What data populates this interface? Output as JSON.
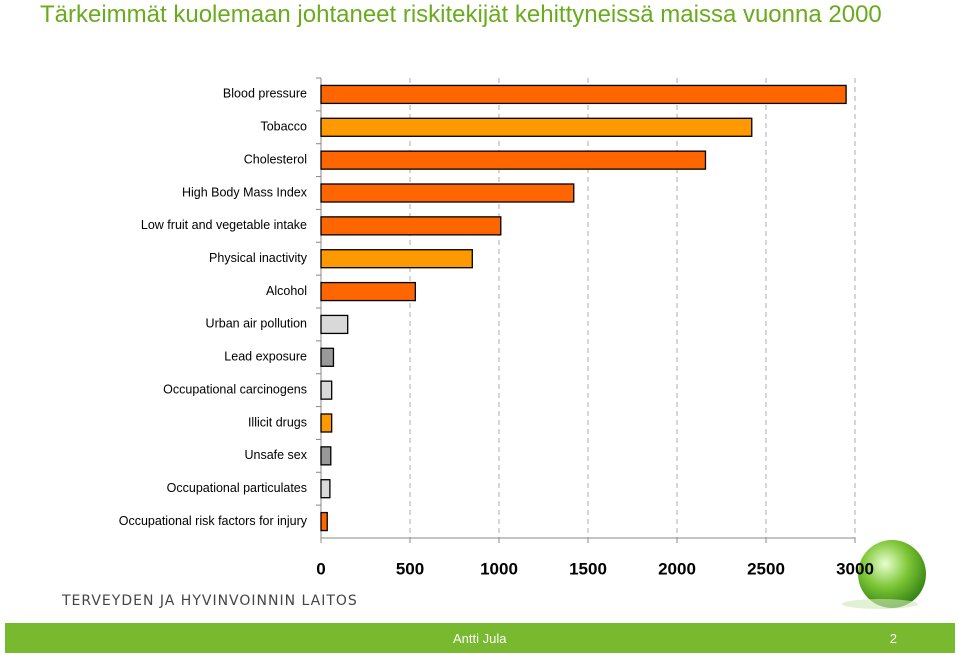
{
  "chart_data": {
    "type": "hbar",
    "title": "Tärkeimmät kuolemaan johtaneet riskitekijät kehittyneissä maissa vuonna 2000",
    "categories": [
      "Blood pressure",
      "Tobacco",
      "Cholesterol",
      "High Body Mass Index",
      "Low fruit and vegetable intake",
      "Physical inactivity",
      "Alcohol",
      "Urban air pollution",
      "Lead exposure",
      "Occupational carcinogens",
      "Illicit drugs",
      "Unsafe sex",
      "Occupational particulates",
      "Occupational risk factors for injury"
    ],
    "values": [
      2950,
      2420,
      2160,
      1420,
      1010,
      850,
      530,
      150,
      70,
      60,
      60,
      55,
      50,
      35
    ],
    "colors": [
      "#ff6600",
      "#ff9900",
      "#ff6600",
      "#ff6600",
      "#ff6600",
      "#ff9900",
      "#ff6600",
      "#d9d9d9",
      "#999999",
      "#d9d9d9",
      "#ff9900",
      "#999999",
      "#d9d9d9",
      "#ff6600"
    ],
    "xlim": [
      0,
      3000
    ],
    "xticks": [
      0,
      500,
      1000,
      1500,
      2000,
      2500,
      3000
    ],
    "grid": true
  },
  "organization": "TERVEYDEN JA HYVINVOINNIN LAITOS",
  "footer": {
    "author": "Antti Jula",
    "page": "2"
  }
}
